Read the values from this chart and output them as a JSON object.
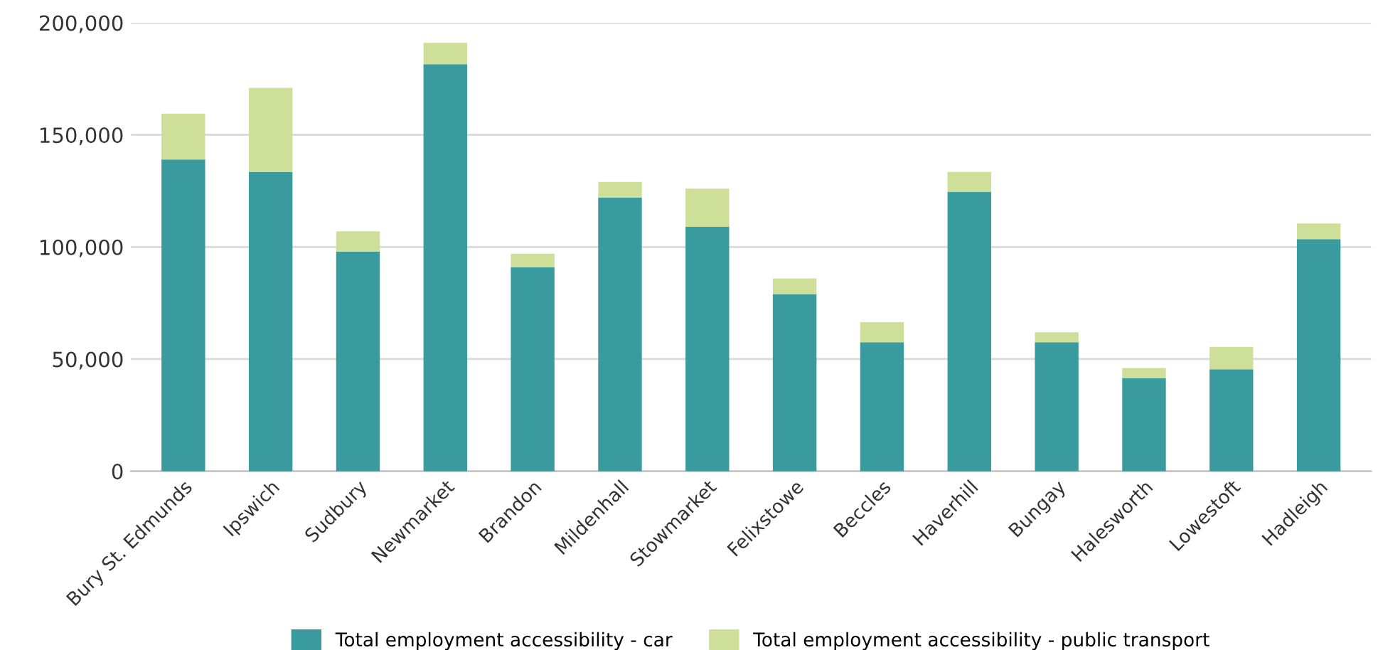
{
  "chart_data": {
    "type": "bar",
    "stacked": true,
    "categories": [
      "Bury St. Edmunds",
      "Ipswich",
      "Sudbury",
      "Newmarket",
      "Brandon",
      "Mildenhall",
      "Stowmarket",
      "Felixstowe",
      "Beccles",
      "Haverhill",
      "Bungay",
      "Halesworth",
      "Lowestoft",
      "Hadleigh"
    ],
    "series": [
      {
        "name": "Total employment accessibility - car",
        "color": "#3a9b9e",
        "values": [
          139000,
          133500,
          98000,
          181500,
          91000,
          122000,
          109000,
          79000,
          57500,
          124500,
          57500,
          41500,
          45500,
          103500
        ]
      },
      {
        "name": "Total employment accessibility - public transport",
        "color": "#cddf98",
        "values": [
          20500,
          37500,
          9000,
          9500,
          6000,
          7000,
          17000,
          7000,
          9000,
          9000,
          4500,
          4500,
          10000,
          7000
        ]
      }
    ],
    "ylim": [
      0,
      200000
    ],
    "yticks": [
      {
        "value": 0,
        "label": "0"
      },
      {
        "value": 50000,
        "label": "50,000"
      },
      {
        "value": 100000,
        "label": "100,000"
      },
      {
        "value": 150000,
        "label": "150,000"
      },
      {
        "value": 200000,
        "label": "200,000"
      }
    ],
    "grid": "y",
    "legend": "bottom"
  }
}
